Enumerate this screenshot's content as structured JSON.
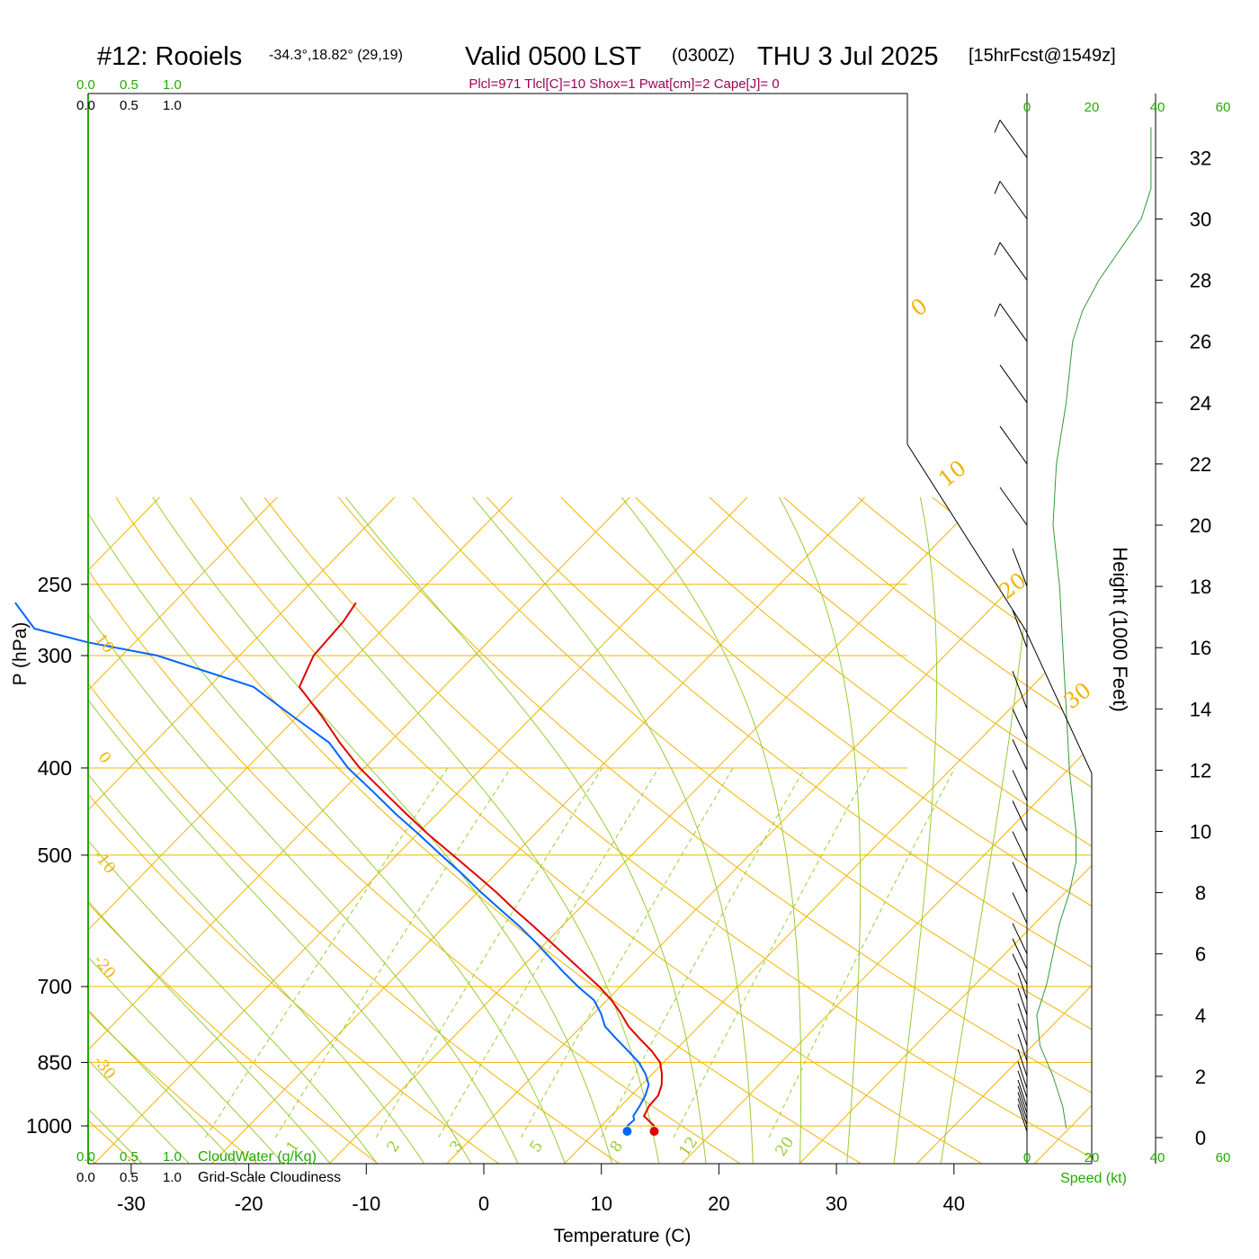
{
  "header": {
    "station": "#12: Rooiels",
    "coords": "-34.3°,18.82° (29,19)",
    "valid": "Valid 0500 LST",
    "utc": "(0300Z)",
    "date": "THU 3 Jul 2025",
    "forecast": "[15hrFcst@1549z]",
    "parcel_info": "Plcl=971 Tlcl[C]=10 Shox=1 Pwat[cm]=2 Cape[J]= 0"
  },
  "colors": {
    "temperature": "#e00000",
    "dewpoint": "#0066ff",
    "isotherm_grid": "#f0b400",
    "moist_adiabat": "#99cc33",
    "green_label": "#22aa00",
    "parcel_text": "#a0005a",
    "wind_speed": "#339933"
  },
  "labels": {
    "cloud_top_green": [
      "0.0",
      "0.5",
      "1.0"
    ],
    "cloud_top_black": [
      "0.0",
      "0.5",
      "1.0"
    ],
    "cloud_bottom_green": [
      "0.0",
      "0.5",
      "1.0"
    ],
    "cloud_bottom_black": [
      "0.0",
      "0.5",
      "1.0"
    ],
    "cloudwater": "CloudWater (g/Kg)",
    "cloudiness": "Grid-Scale Cloudiness",
    "speed_top": [
      "0",
      "20",
      "40",
      "60"
    ],
    "speed_bottom": [
      "0",
      "20",
      "40",
      "60"
    ],
    "speed_axis": "Speed (kt)",
    "height_axis": "Height (1000 Feet)",
    "pressure_axis": "P (hPa)",
    "temp_axis": "Temperature (C)"
  },
  "chart_data": {
    "type": "line",
    "title": "#12: Rooiels Valid 0500 LST (0300Z) THU 3 Jul 2025",
    "xlabel": "Temperature (C)",
    "ylabel": "P (hPa)",
    "y2label": "Height (1000 Feet)",
    "scale": "skew-T log-P",
    "xlim": [
      -34,
      45
    ],
    "ylim": [
      1030,
      250
    ],
    "x_ticks": [
      "-30",
      "-20",
      "-10",
      "0",
      "10",
      "20",
      "30",
      "40"
    ],
    "x_tick_values": [
      -30,
      -20,
      -10,
      0,
      10,
      20,
      30,
      40
    ],
    "y_ticks": [
      "250",
      "300",
      "400",
      "500",
      "700",
      "850",
      "1000"
    ],
    "y_tick_values": [
      250,
      300,
      400,
      500,
      700,
      850,
      1000
    ],
    "height_ticks": [
      "0",
      "2",
      "4",
      "6",
      "8",
      "10",
      "12",
      "14",
      "16",
      "18",
      "20",
      "22",
      "24",
      "26",
      "28",
      "30",
      "32"
    ],
    "height_tick_values": [
      0,
      2,
      4,
      6,
      8,
      10,
      12,
      14,
      16,
      18,
      20,
      22,
      24,
      26,
      28,
      30,
      32
    ],
    "skewed_isotherm_labels": [
      "0",
      "10",
      "20",
      "30"
    ],
    "skewed_isotherm_values": [
      0,
      10,
      20,
      30
    ],
    "dry_adiabat_labels": [
      "10",
      "0",
      "-10",
      "-20",
      "-30"
    ],
    "dry_adiabat_pressures": [
      300,
      398,
      520,
      680,
      880
    ],
    "mixing_ratio_labels": [
      "1",
      "2",
      "3",
      "5",
      "8",
      "12",
      "20"
    ],
    "series": [
      {
        "name": "Temperature",
        "pressure": [
          1000,
          975,
          950,
          925,
          900,
          875,
          850,
          825,
          800,
          775,
          750,
          725,
          700,
          675,
          650,
          625,
          600,
          575,
          550,
          525,
          500,
          475,
          450,
          425,
          400,
          375,
          350,
          325,
          300,
          275,
          262
        ],
        "temperature": [
          14.5,
          12.8,
          12.4,
          12.3,
          11.7,
          10.8,
          9.7,
          8.0,
          6.0,
          4.0,
          2.3,
          0.4,
          -1.8,
          -4.3,
          -6.9,
          -9.6,
          -12.4,
          -15.4,
          -18.4,
          -21.7,
          -25.2,
          -28.9,
          -32.6,
          -36.4,
          -40.4,
          -44.2,
          -48.0,
          -52.3,
          -53.7,
          -54.0,
          -54.5
        ]
      },
      {
        "name": "Dewpoint",
        "pressure": [
          1000,
          985,
          975,
          950,
          925,
          900,
          875,
          850,
          825,
          800,
          775,
          750,
          725,
          700,
          675,
          650,
          625,
          600,
          575,
          550,
          525,
          500,
          475,
          450,
          425,
          400,
          375,
          350,
          325,
          300,
          290,
          280,
          262
        ],
        "temperature": [
          12.2,
          12.3,
          11.9,
          11.6,
          11.2,
          10.6,
          9.4,
          7.9,
          6.0,
          4.0,
          2.0,
          0.6,
          -1.1,
          -3.6,
          -6.0,
          -8.4,
          -10.9,
          -13.6,
          -16.6,
          -19.7,
          -22.8,
          -26.2,
          -29.7,
          -33.5,
          -37.3,
          -41.4,
          -45.1,
          -50.5,
          -56.2,
          -67.0,
          -74.0,
          -79.7,
          -83.5
        ]
      },
      {
        "name": "Wind speed",
        "height_kft": [
          0.3,
          1.0,
          2.0,
          3.0,
          4.0,
          5.0,
          6.0,
          7.0,
          8.0,
          9.0,
          10.0,
          11.0,
          12.0,
          14.0,
          16.0,
          18.0,
          20.0,
          22.0,
          24.0,
          26.0,
          27.0,
          28.0,
          30.0,
          31.0,
          32.0,
          33.0
        ],
        "speed_kt": [
          12,
          11,
          8,
          4,
          3,
          6,
          8,
          10,
          13,
          15,
          15,
          14,
          13,
          12,
          11,
          10,
          8,
          9,
          12,
          14,
          17,
          22,
          35,
          38,
          38,
          38
        ]
      }
    ],
    "surface_points": [
      {
        "name": "Surface temperature",
        "temperature": 14.5,
        "pressure": 1000
      },
      {
        "name": "Surface dewpoint",
        "temperature": 12.2,
        "pressure": 1000
      }
    ]
  }
}
